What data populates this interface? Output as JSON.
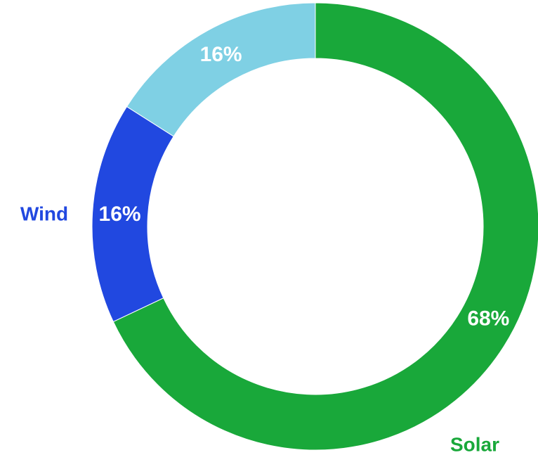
{
  "chart_data": {
    "type": "pie",
    "donut": true,
    "categories": [
      "Solar",
      "Wind",
      ""
    ],
    "values": [
      68,
      16,
      16
    ],
    "value_labels": [
      "68%",
      "16%",
      "16%"
    ],
    "colors": [
      "#19a83a",
      "#2148e0",
      "#7fd0e4"
    ],
    "category_label_colors": [
      "#19a83a",
      "#2148e0",
      "#7fd0e4"
    ],
    "start_angle_deg": 0,
    "direction": "clockwise",
    "legend": "none"
  }
}
